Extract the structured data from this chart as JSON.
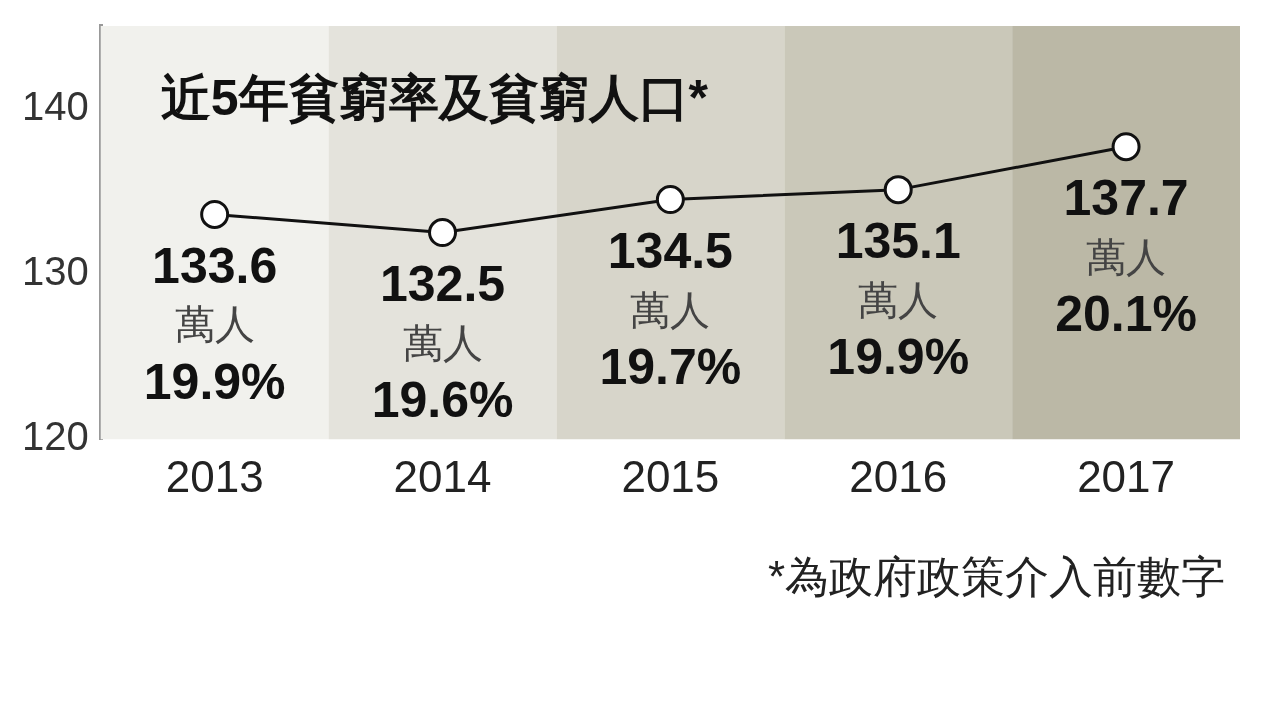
{
  "chart_data": {
    "type": "line",
    "title": "近5年貧窮率及貧窮人口*",
    "categories": [
      "2013",
      "2014",
      "2015",
      "2016",
      "2017"
    ],
    "series": [
      {
        "color": "#111111",
        "values": [
          133.6,
          132.5,
          134.5,
          135.1,
          137.7
        ],
        "value_labels": [
          "133.6\n萬人\n19.9%",
          "132.5\n萬人\n19.6%",
          "134.5\n萬人\n19.7%",
          "135.1\n萬人\n19.9%",
          "137.7\n萬人\n20.1%"
        ]
      }
    ],
    "ylim": [
      120,
      145
    ],
    "yticks": [
      120,
      130,
      140
    ],
    "grid": false,
    "legend": false,
    "marker": "circle",
    "line_style": "solid",
    "bands": [
      {
        "axis": "x",
        "from": "2013",
        "to": "2013",
        "color": "#f1f1ed"
      },
      {
        "axis": "x",
        "from": "2014",
        "to": "2014",
        "color": "#e4e3dc"
      },
      {
        "axis": "x",
        "from": "2015",
        "to": "2015",
        "color": "#d7d5ca"
      },
      {
        "axis": "x",
        "from": "2016",
        "to": "2016",
        "color": "#cac8b9"
      },
      {
        "axis": "x",
        "from": "2017",
        "to": "2017",
        "color": "#bbb8a6"
      }
    ],
    "annotations": [
      "*為政府政策介入前數字"
    ]
  }
}
